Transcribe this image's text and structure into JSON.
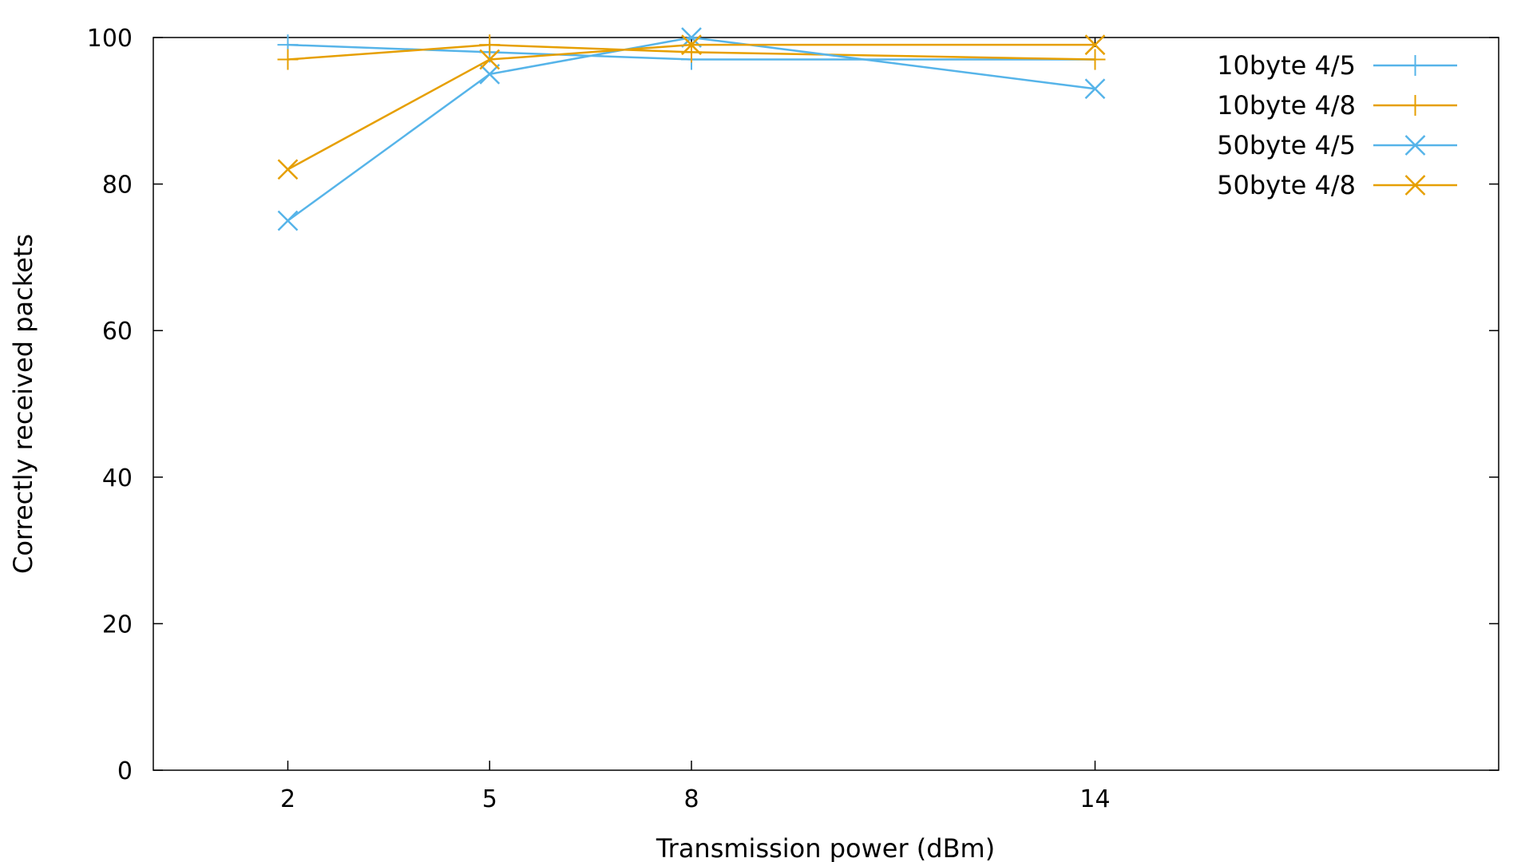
{
  "chart_data": {
    "type": "line",
    "title": "",
    "xlabel": "Transmission power (dBm)",
    "ylabel": "Correctly received packets",
    "x": [
      2,
      5,
      8,
      14
    ],
    "x_tick_labels": [
      "2",
      "5",
      "8",
      "14"
    ],
    "xlim": [
      0,
      20
    ],
    "ylim": [
      0,
      100
    ],
    "y_ticks": [
      0,
      20,
      40,
      60,
      80,
      100
    ],
    "y_tick_labels": [
      "0",
      "20",
      "40",
      "60",
      "80",
      "100"
    ],
    "grid": false,
    "legend_position": "top-right",
    "series": [
      {
        "name": "10byte 4/5",
        "values": [
          99,
          98,
          97,
          97
        ],
        "color": "#56b4e9",
        "marker": "plus"
      },
      {
        "name": "10byte 4/8",
        "values": [
          97,
          99,
          98,
          97
        ],
        "color": "#e69f00",
        "marker": "plus"
      },
      {
        "name": "50byte 4/5",
        "values": [
          75,
          95,
          100,
          93
        ],
        "color": "#56b4e9",
        "marker": "cross"
      },
      {
        "name": "50byte 4/8",
        "values": [
          82,
          97,
          99,
          99
        ],
        "color": "#e69f00",
        "marker": "cross"
      }
    ]
  }
}
